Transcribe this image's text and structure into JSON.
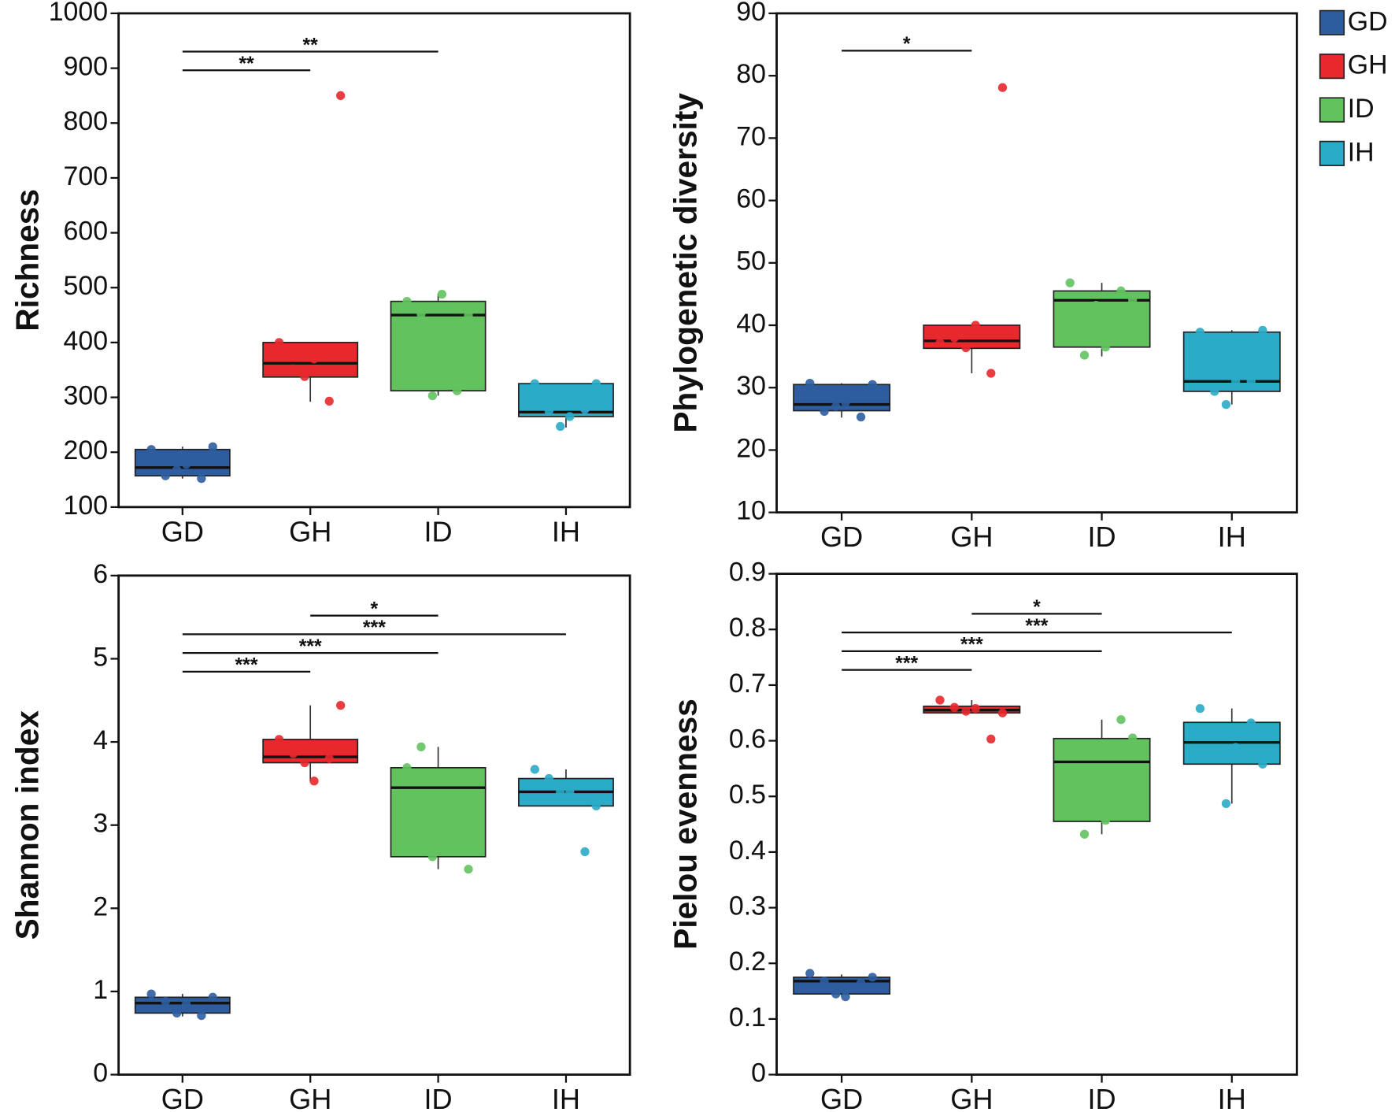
{
  "legend": [
    {
      "name": "GD",
      "color": "#2d5d9f"
    },
    {
      "name": "GH",
      "color": "#e8282c"
    },
    {
      "name": "ID",
      "color": "#62c25e"
    },
    {
      "name": "IH",
      "color": "#2aabc7"
    }
  ],
  "chart_data": [
    {
      "type": "box",
      "ylabel": "Richness",
      "categories": [
        "GD",
        "GH",
        "ID",
        "IH"
      ],
      "ylim": [
        100,
        1000
      ],
      "yticks": [
        100,
        200,
        300,
        400,
        500,
        600,
        700,
        800,
        900,
        1000
      ],
      "boxes": [
        {
          "min": 152,
          "q1": 157,
          "median": 172,
          "q3": 205,
          "max": 210,
          "points": [
            205,
            157,
            178,
            152,
            168,
            210
          ]
        },
        {
          "min": 292,
          "q1": 337,
          "median": 362,
          "q3": 400,
          "max": 400,
          "points": [
            400,
            352,
            370,
            293,
            338,
            850
          ]
        },
        {
          "min": 303,
          "q1": 312,
          "median": 450,
          "q3": 475,
          "max": 488,
          "points": [
            475,
            452,
            488,
            312,
            303,
            450
          ]
        },
        {
          "min": 245,
          "q1": 265,
          "median": 273,
          "q3": 325,
          "max": 325,
          "points": [
            325,
            275,
            265,
            278,
            247,
            325
          ]
        }
      ],
      "annotations": [
        {
          "from": "GD",
          "to": "GH",
          "label": "**"
        },
        {
          "from": "GD",
          "to": "ID",
          "label": "**"
        }
      ]
    },
    {
      "type": "box",
      "ylabel": "Phylogenetic diversity",
      "categories": [
        "GD",
        "GH",
        "ID",
        "IH"
      ],
      "ylim": [
        10,
        90
      ],
      "yticks": [
        10,
        20,
        30,
        40,
        50,
        60,
        70,
        80,
        90
      ],
      "boxes": [
        {
          "min": 25.2,
          "q1": 26.3,
          "median": 27.3,
          "q3": 30.5,
          "max": 30.7,
          "points": [
            30.7,
            26.2,
            27.6,
            25.3,
            27.0,
            30.5
          ]
        },
        {
          "min": 32.3,
          "q1": 36.3,
          "median": 37.5,
          "q3": 40,
          "max": 40,
          "points": [
            37.2,
            38,
            40,
            32.3,
            36.4,
            78.1
          ]
        },
        {
          "min": 35,
          "q1": 36.5,
          "median": 44,
          "q3": 45.5,
          "max": 46.8,
          "points": [
            46.8,
            35.2,
            36.5,
            45.5,
            43.2,
            44
          ]
        },
        {
          "min": 27.3,
          "q1": 29.4,
          "median": 31,
          "q3": 38.9,
          "max": 39.2,
          "points": [
            38.9,
            29.4,
            31,
            31,
            27.3,
            39.2
          ]
        }
      ],
      "annotations": [
        {
          "from": "GD",
          "to": "GH",
          "label": "*"
        }
      ]
    },
    {
      "type": "box",
      "ylabel": "Shannon index",
      "categories": [
        "GD",
        "GH",
        "ID",
        "IH"
      ],
      "ylim": [
        0,
        6
      ],
      "yticks": [
        0,
        1,
        2,
        3,
        4,
        5,
        6
      ],
      "boxes": [
        {
          "min": 0.7,
          "q1": 0.74,
          "median": 0.86,
          "q3": 0.93,
          "max": 0.97,
          "points": [
            0.97,
            0.88,
            0.85,
            0.71,
            0.74,
            0.93
          ]
        },
        {
          "min": 3.53,
          "q1": 3.75,
          "median": 3.82,
          "q3": 4.03,
          "max": 4.44,
          "points": [
            4.03,
            3.86,
            3.53,
            3.8,
            3.75,
            4.44
          ]
        },
        {
          "min": 2.47,
          "q1": 2.62,
          "median": 3.45,
          "q3": 3.69,
          "max": 3.94,
          "points": [
            3.69,
            3.94,
            3.32,
            3.57,
            2.62,
            2.47
          ]
        },
        {
          "min": 3.23,
          "q1": 3.23,
          "median": 3.4,
          "q3": 3.56,
          "max": 3.67,
          "points": [
            3.67,
            3.56,
            3.4,
            2.68,
            3.4,
            3.23
          ]
        }
      ],
      "annotations": [
        {
          "from": "GD",
          "to": "GH",
          "label": "***"
        },
        {
          "from": "GD",
          "to": "ID",
          "label": "***"
        },
        {
          "from": "GD",
          "to": "IH",
          "label": "***"
        },
        {
          "from": "GH",
          "to": "ID",
          "label": "*"
        }
      ]
    },
    {
      "type": "box",
      "ylabel": "Pielou evenness",
      "categories": [
        "GD",
        "GH",
        "ID",
        "IH"
      ],
      "ylim": [
        0,
        0.9
      ],
      "yticks": [
        0,
        0.1,
        0.2,
        0.3,
        0.4,
        0.5,
        0.6,
        0.7,
        0.8,
        0.9
      ],
      "boxes": [
        {
          "min": 0.14,
          "q1": 0.145,
          "median": 0.168,
          "q3": 0.175,
          "max": 0.18,
          "points": [
            0.182,
            0.168,
            0.14,
            0.165,
            0.145,
            0.175
          ]
        },
        {
          "min": 0.65,
          "q1": 0.65,
          "median": 0.655,
          "q3": 0.662,
          "max": 0.673,
          "points": [
            0.673,
            0.66,
            0.658,
            0.603,
            0.653,
            0.65
          ]
        },
        {
          "min": 0.432,
          "q1": 0.455,
          "median": 0.562,
          "q3": 0.604,
          "max": 0.638,
          "points": [
            0.58,
            0.432,
            0.457,
            0.638,
            0.545,
            0.605
          ]
        },
        {
          "min": 0.487,
          "q1": 0.558,
          "median": 0.597,
          "q3": 0.633,
          "max": 0.658,
          "points": [
            0.658,
            0.608,
            0.588,
            0.632,
            0.487,
            0.558
          ]
        }
      ],
      "annotations": [
        {
          "from": "GD",
          "to": "GH",
          "label": "***"
        },
        {
          "from": "GD",
          "to": "ID",
          "label": "***"
        },
        {
          "from": "GD",
          "to": "IH",
          "label": "***"
        },
        {
          "from": "GH",
          "to": "ID",
          "label": "*"
        }
      ]
    }
  ]
}
